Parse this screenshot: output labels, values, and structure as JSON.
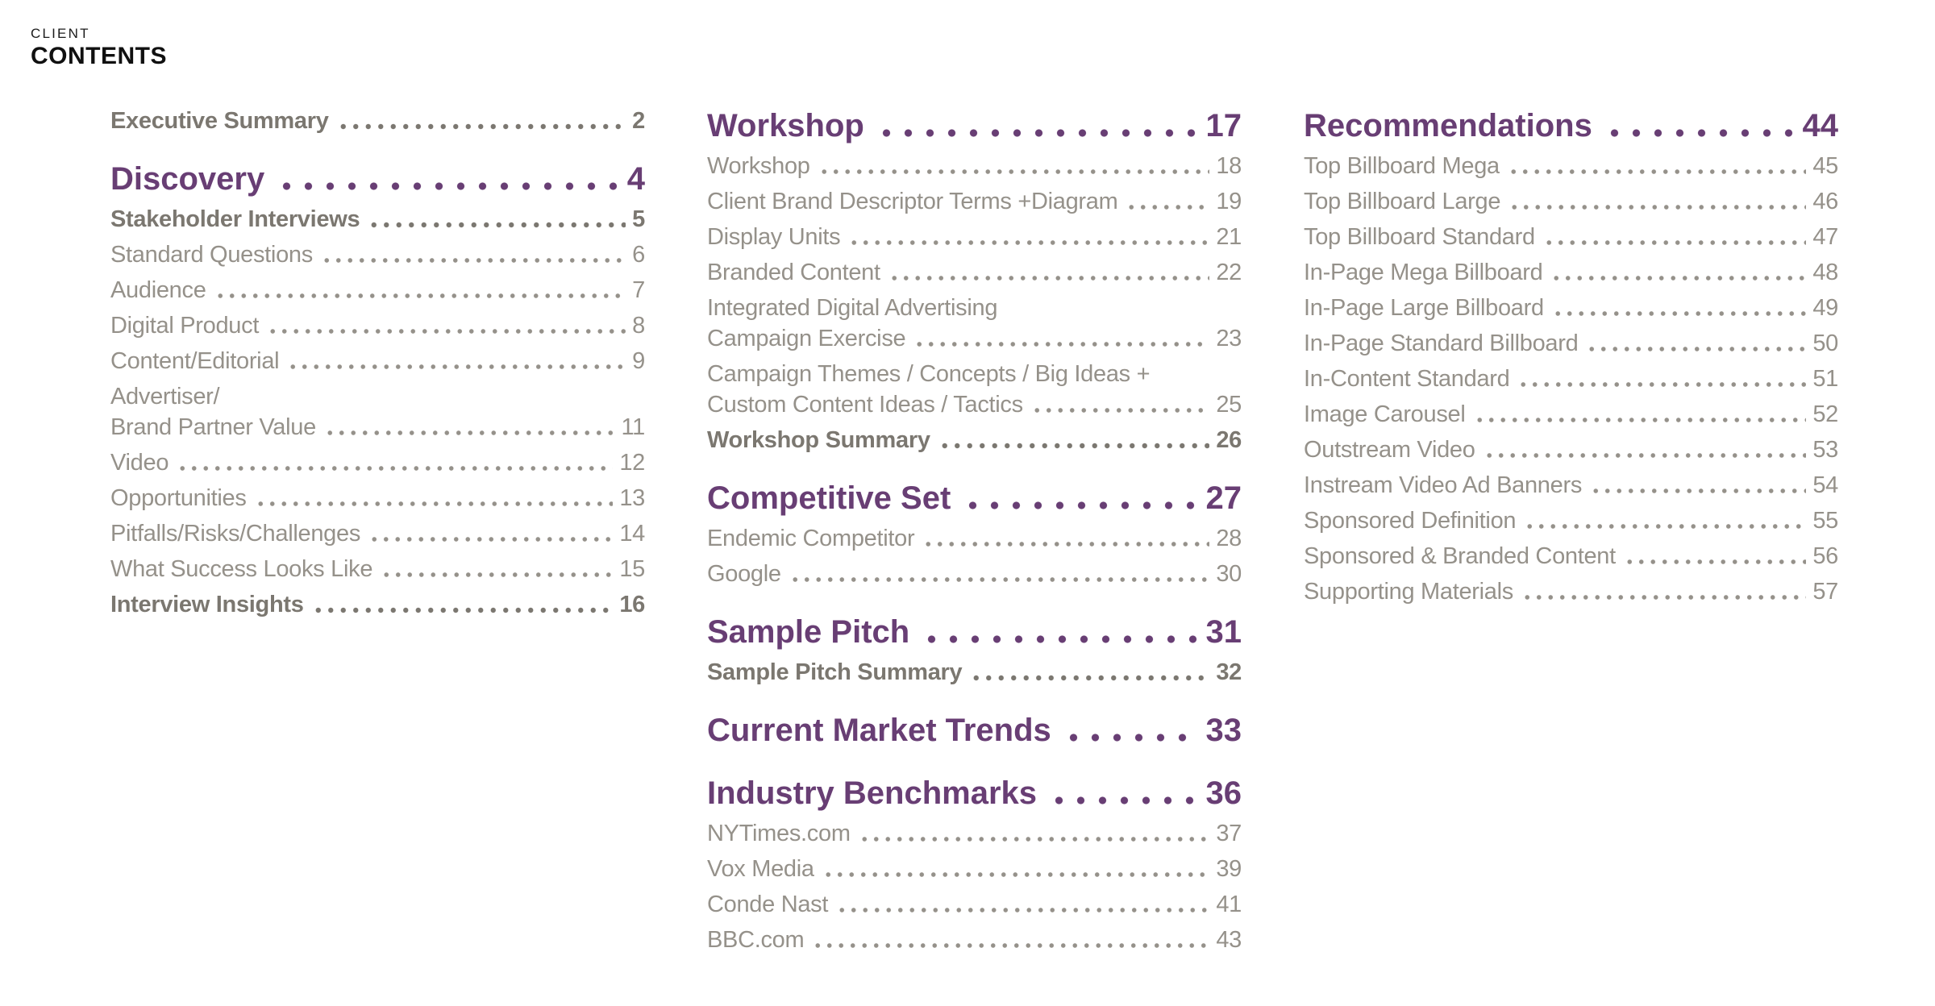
{
  "header": {
    "eyebrow": "CLIENT",
    "title": "CONTENTS"
  },
  "colors": {
    "accent": "#683e74",
    "entry": "#95918a",
    "entry_bold": "#7b7770",
    "header_text": "#1b1b1b",
    "background": "#ffffff"
  },
  "columns": [
    {
      "sections": [
        {
          "heading": null,
          "entries": [
            {
              "label": "Executive Summary",
              "page": "2",
              "bold": true
            }
          ]
        },
        {
          "heading": {
            "label": "Discovery",
            "page": "4"
          },
          "entries": [
            {
              "label": "Stakeholder Interviews",
              "page": "5",
              "bold": true
            },
            {
              "label": "Standard Questions",
              "page": "6"
            },
            {
              "label": "Audience",
              "page": "7"
            },
            {
              "label": "Digital Product",
              "page": "8"
            },
            {
              "label": "Content/Editorial",
              "page": "9"
            },
            {
              "label": "Advertiser/",
              "page": null
            },
            {
              "label": "Brand Partner Value",
              "page": "11",
              "cont": true
            },
            {
              "label": "Video",
              "page": "12"
            },
            {
              "label": "Opportunities",
              "page": "13"
            },
            {
              "label": "Pitfalls/Risks/Challenges",
              "page": "14"
            },
            {
              "label": "What Success Looks Like",
              "page": "15"
            },
            {
              "label": "Interview Insights",
              "page": "16",
              "bold": true
            }
          ]
        }
      ]
    },
    {
      "sections": [
        {
          "heading": {
            "label": "Workshop",
            "page": "17"
          },
          "entries": [
            {
              "label": "Workshop",
              "page": "18"
            },
            {
              "label": "Client Brand Descriptor Terms +Diagram",
              "page": "19"
            },
            {
              "label": "Display Units",
              "page": "21"
            },
            {
              "label": "Branded Content",
              "page": "22"
            },
            {
              "label": "Integrated Digital Advertising",
              "page": null
            },
            {
              "label": "Campaign Exercise",
              "page": "23",
              "cont": true
            },
            {
              "label": "Campaign Themes / Concepts / Big Ideas +",
              "page": null
            },
            {
              "label": "Custom Content Ideas / Tactics",
              "page": "25",
              "cont": true
            },
            {
              "label": "Workshop Summary",
              "page": "26",
              "bold": true
            }
          ]
        },
        {
          "heading": {
            "label": "Competitive Set",
            "page": "27"
          },
          "entries": [
            {
              "label": "Endemic Competitor",
              "page": "28"
            },
            {
              "label": "Google",
              "page": "30"
            }
          ]
        },
        {
          "heading": {
            "label": "Sample Pitch",
            "page": "31"
          },
          "entries": [
            {
              "label": "Sample Pitch Summary",
              "page": "32",
              "bold": true
            }
          ]
        },
        {
          "heading": {
            "label": "Current Market Trends",
            "page": "33"
          },
          "entries": []
        },
        {
          "heading": {
            "label": "Industry Benchmarks",
            "page": "36"
          },
          "entries": [
            {
              "label": "NYTimes.com",
              "page": "37"
            },
            {
              "label": "Vox Media",
              "page": "39"
            },
            {
              "label": "Conde Nast",
              "page": "41"
            },
            {
              "label": "BBC.com",
              "page": "43"
            }
          ]
        }
      ]
    },
    {
      "sections": [
        {
          "heading": {
            "label": "Recommendations",
            "page": "44"
          },
          "entries": [
            {
              "label": "Top Billboard Mega",
              "page": "45"
            },
            {
              "label": "Top Billboard Large",
              "page": "46"
            },
            {
              "label": "Top Billboard Standard",
              "page": "47"
            },
            {
              "label": "In-Page Mega Billboard",
              "page": "48"
            },
            {
              "label": "In-Page Large Billboard",
              "page": "49"
            },
            {
              "label": "In-Page Standard Billboard",
              "page": "50"
            },
            {
              "label": "In-Content Standard",
              "page": "51"
            },
            {
              "label": "Image Carousel",
              "page": "52"
            },
            {
              "label": "Outstream Video",
              "page": "53"
            },
            {
              "label": "Instream Video Ad Banners",
              "page": "54"
            },
            {
              "label": "Sponsored Definition",
              "page": "55"
            },
            {
              "label": "Sponsored & Branded Content",
              "page": "56"
            },
            {
              "label": "Supporting Materials",
              "page": "57"
            }
          ]
        }
      ]
    }
  ]
}
